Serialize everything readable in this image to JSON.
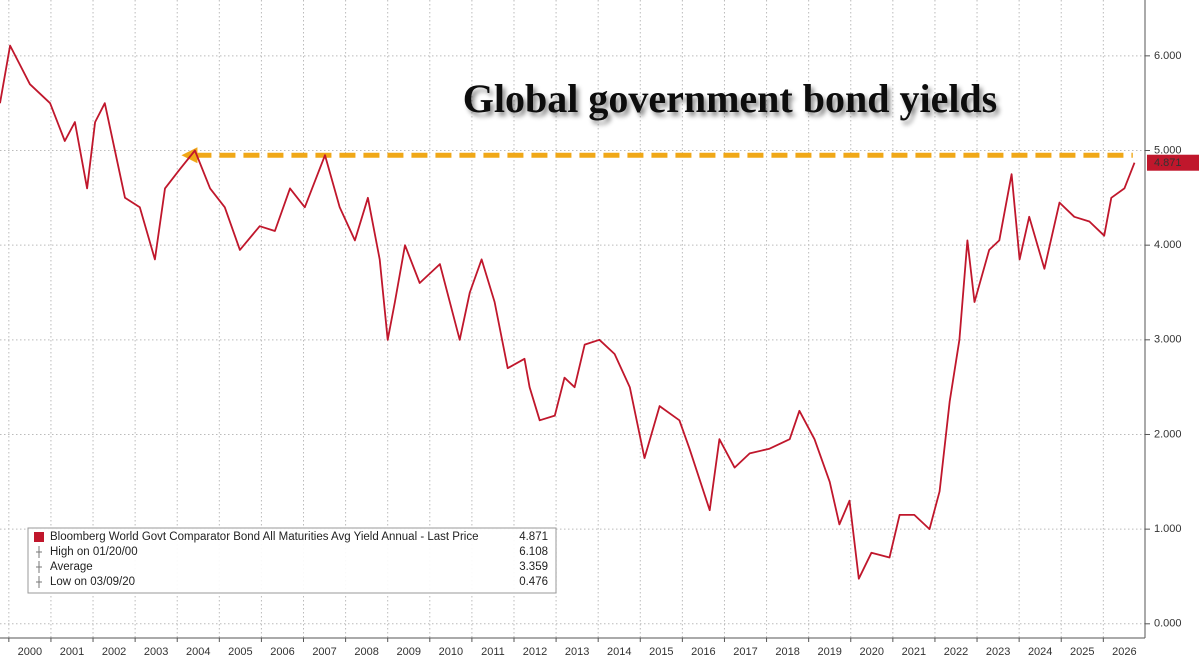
{
  "chart_data": {
    "type": "line",
    "title": "Global government bond yields",
    "x": [
      1999.79,
      2000.03,
      2000.5,
      2000.98,
      2001.33,
      2001.57,
      2001.86,
      2002.05,
      2002.28,
      2002.52,
      2002.76,
      2003.11,
      2003.47,
      2003.71,
      2004.06,
      2004.42,
      2004.78,
      2005.13,
      2005.49,
      2005.96,
      2006.32,
      2006.68,
      2007.03,
      2007.51,
      2007.86,
      2008.22,
      2008.53,
      2008.81,
      2009.0,
      2009.17,
      2009.41,
      2009.76,
      2010.24,
      2010.71,
      2010.95,
      2011.23,
      2011.54,
      2011.85,
      2012.25,
      2012.37,
      2012.61,
      2012.97,
      2013.2,
      2013.44,
      2013.68,
      2014.03,
      2014.39,
      2014.75,
      2015.1,
      2015.46,
      2015.93,
      2016.17,
      2016.65,
      2016.88,
      2017.24,
      2017.6,
      2018.07,
      2018.55,
      2018.78,
      2019.14,
      2019.5,
      2019.73,
      2019.97,
      2020.19,
      2020.49,
      2020.92,
      2021.16,
      2021.51,
      2021.87,
      2022.11,
      2022.35,
      2022.58,
      2022.77,
      2022.94,
      2023.29,
      2023.53,
      2023.82,
      2024.01,
      2024.24,
      2024.6,
      2024.96,
      2025.31,
      2025.67,
      2026.02,
      2026.19,
      2026.5,
      2026.74
    ],
    "series": [
      {
        "name": "Bloomberg World Govt Comparator Bond All Maturities Avg Yield Annual - Last Price",
        "color": "#c0172c",
        "values": [
          5.5,
          6.108,
          5.7,
          5.5,
          5.1,
          5.3,
          4.6,
          5.3,
          5.5,
          5.0,
          4.5,
          4.4,
          3.85,
          4.6,
          4.8,
          5.0,
          4.6,
          4.4,
          3.95,
          4.2,
          4.15,
          4.6,
          4.4,
          4.95,
          4.4,
          4.05,
          4.5,
          3.85,
          3.0,
          3.4,
          4.0,
          3.6,
          3.8,
          3.0,
          3.5,
          3.85,
          3.4,
          2.7,
          2.8,
          2.5,
          2.15,
          2.2,
          2.6,
          2.5,
          2.95,
          3.0,
          2.85,
          2.5,
          1.75,
          2.3,
          2.15,
          1.85,
          1.2,
          1.95,
          1.65,
          1.8,
          1.85,
          1.95,
          2.25,
          1.95,
          1.5,
          1.05,
          1.3,
          0.476,
          0.75,
          0.7,
          1.15,
          1.15,
          1.0,
          1.4,
          2.35,
          3.0,
          4.05,
          3.4,
          3.95,
          4.05,
          4.75,
          3.85,
          4.3,
          3.75,
          4.45,
          4.3,
          4.25,
          4.1,
          4.5,
          4.6,
          4.871
        ]
      }
    ],
    "xlim": [
      1999.79,
      2026.99
    ],
    "xticks": [
      2000,
      2001,
      2002,
      2003,
      2004,
      2005,
      2006,
      2007,
      2008,
      2009,
      2010,
      2011,
      2012,
      2013,
      2014,
      2015,
      2016,
      2017,
      2018,
      2019,
      2020,
      2021,
      2022,
      2023,
      2024,
      2025,
      2026
    ],
    "ylim": [
      -0.15,
      6.59
    ],
    "yticks": [
      {
        "value": 0,
        "label": "0.000"
      },
      {
        "value": 1,
        "label": "1.000"
      },
      {
        "value": 2,
        "label": "2.000"
      },
      {
        "value": 3,
        "label": "3.000"
      },
      {
        "value": 4,
        "label": "4.000"
      },
      {
        "value": 5,
        "label": "5.000"
      },
      {
        "value": 6,
        "label": "6.000"
      }
    ],
    "last_price": 4.871,
    "grid": true,
    "annotation_arrow": {
      "y": 4.95,
      "x": [
        2004.1,
        2026.7
      ],
      "color": "#f0a818"
    },
    "legend": {
      "corner": "lower left",
      "stats": [
        {
          "label": "High on 01/20/00",
          "value": 6.108
        },
        {
          "label": "Average",
          "value": 3.359
        },
        {
          "label": "Low on 03/09/20",
          "value": 0.476
        }
      ]
    }
  }
}
